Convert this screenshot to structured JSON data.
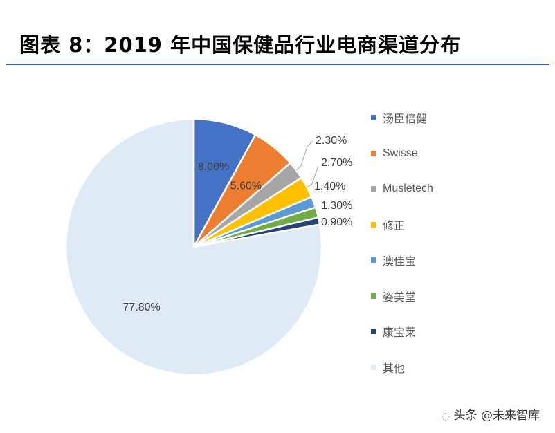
{
  "title": "图表 8：2019 年中国保健品行业电商渠道分布",
  "watermark": "头条 @未来智库",
  "chart_data": {
    "type": "pie",
    "title": "图表 8：2019 年中国保健品行业电商渠道分布",
    "legend_position": "right",
    "slices": [
      {
        "name": "汤臣倍健",
        "value": 8.0,
        "label": "8.00%",
        "color": "#4472C4"
      },
      {
        "name": "Swisse",
        "value": 5.6,
        "label": "5.60%",
        "color": "#ED7D31"
      },
      {
        "name": "Musletech",
        "value": 2.3,
        "label": "2.30%",
        "color": "#A5A5A5"
      },
      {
        "name": "修正",
        "value": 2.7,
        "label": "2.70%",
        "color": "#FFC000"
      },
      {
        "name": "澳佳宝",
        "value": 1.4,
        "label": "1.40%",
        "color": "#5B9BD5"
      },
      {
        "name": "姿美堂",
        "value": 1.3,
        "label": "1.30%",
        "color": "#70AD47"
      },
      {
        "name": "康宝莱",
        "value": 0.9,
        "label": "0.90%",
        "color": "#264478"
      },
      {
        "name": "其他",
        "value": 77.8,
        "label": "77.80%",
        "color": "#DEEBF7"
      }
    ]
  }
}
